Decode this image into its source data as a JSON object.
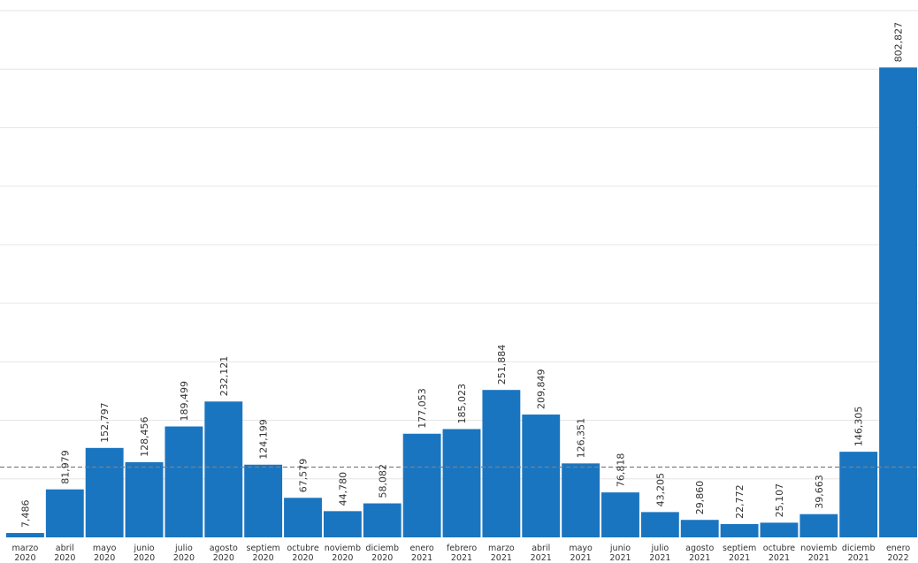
{
  "colors": {
    "bar": "#1a75c1",
    "grid": "#e6e6e6",
    "reference_line": "#7f7f7f",
    "text": "#333333"
  },
  "chart_data": {
    "type": "bar",
    "title": "",
    "xlabel": "",
    "ylabel": "",
    "ylim": [
      0,
      900000
    ],
    "grid": true,
    "gridline_step": 100000,
    "legend": "none",
    "reference_line": 120000,
    "categories": [
      {
        "month": "marzo",
        "year": "2020"
      },
      {
        "month": "abril",
        "year": "2020"
      },
      {
        "month": "mayo",
        "year": "2020"
      },
      {
        "month": "junio",
        "year": "2020"
      },
      {
        "month": "julio",
        "year": "2020"
      },
      {
        "month": "agosto",
        "year": "2020"
      },
      {
        "month": "septiem",
        "year": "2020"
      },
      {
        "month": "octubre",
        "year": "2020"
      },
      {
        "month": "noviemb",
        "year": "2020"
      },
      {
        "month": "diciemb",
        "year": "2020"
      },
      {
        "month": "enero",
        "year": "2021"
      },
      {
        "month": "febrero",
        "year": "2021"
      },
      {
        "month": "marzo",
        "year": "2021"
      },
      {
        "month": "abril",
        "year": "2021"
      },
      {
        "month": "mayo",
        "year": "2021"
      },
      {
        "month": "junio",
        "year": "2021"
      },
      {
        "month": "julio",
        "year": "2021"
      },
      {
        "month": "agosto",
        "year": "2021"
      },
      {
        "month": "septiem",
        "year": "2021"
      },
      {
        "month": "octubre",
        "year": "2021"
      },
      {
        "month": "noviemb",
        "year": "2021"
      },
      {
        "month": "diciemb",
        "year": "2021"
      },
      {
        "month": "enero",
        "year": "2022"
      }
    ],
    "values": [
      7486,
      81979,
      152797,
      128456,
      189499,
      232121,
      124199,
      67579,
      44780,
      58082,
      177053,
      185023,
      251884,
      209849,
      126351,
      76818,
      43205,
      29860,
      22772,
      25107,
      39663,
      146305,
      802827
    ],
    "value_labels": [
      "7,486",
      "81,979",
      "152,797",
      "128,456",
      "189,499",
      "232,121",
      "124,199",
      "67,579",
      "44,780",
      "58,082",
      "177,053",
      "185,023",
      "251,884",
      "209,849",
      "126,351",
      "76,818",
      "43,205",
      "29,860",
      "22,772",
      "25,107",
      "39,663",
      "146,305",
      "802,827"
    ]
  }
}
